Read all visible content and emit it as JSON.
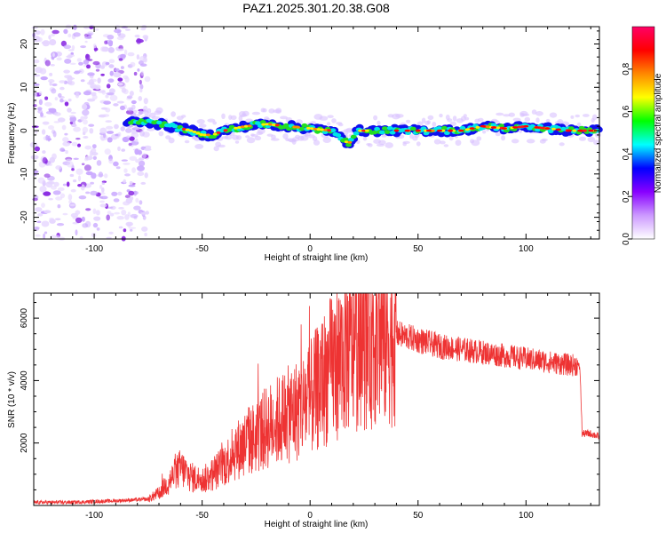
{
  "title": "PAZ1.2025.301.20.38.G08",
  "chart_data": [
    {
      "type": "heatmap",
      "name": "spectrogram",
      "xlabel": "Height of straight line (km)",
      "ylabel": "Frequency (Hz)",
      "xlim": [
        -128,
        134
      ],
      "ylim": [
        -25,
        24
      ],
      "xticks": [
        -100,
        -50,
        0,
        50,
        100
      ],
      "yticks": [
        -20,
        -10,
        0,
        10,
        20
      ],
      "noise_region_x": [
        -128,
        -75
      ],
      "track": {
        "x": [
          -85,
          -75,
          -65,
          -55,
          -50,
          -45,
          -40,
          -30,
          -20,
          -10,
          0,
          10,
          15,
          18,
          22,
          30,
          40,
          50,
          60,
          70,
          80,
          90,
          100,
          110,
          120,
          134
        ],
        "y": [
          2,
          2,
          1,
          0,
          -1,
          -1,
          0,
          1,
          1.5,
          1,
          0.5,
          0,
          -2,
          -3,
          0,
          0,
          0,
          0,
          0,
          0,
          1,
          0.5,
          1,
          0.5,
          0,
          0
        ]
      },
      "colorbar": {
        "label": "Normalized spectral amplitude",
        "range": [
          0.0,
          1.0
        ],
        "ticks": [
          "0.0",
          "0.2",
          "0.4",
          "0.6",
          "0.8"
        ],
        "colors": [
          "#ffffff",
          "#cc99ff",
          "#8800ff",
          "#0000ff",
          "#00ffff",
          "#00ff00",
          "#ffff00",
          "#ff8800",
          "#ff0000",
          "#ff0066"
        ]
      }
    },
    {
      "type": "line",
      "name": "snr",
      "xlabel": "Height of straight line (km)",
      "ylabel": "SNR (10 * v/v)",
      "xlim": [
        -128,
        134
      ],
      "ylim": [
        0,
        6800
      ],
      "xticks": [
        -100,
        -50,
        0,
        50,
        100
      ],
      "yticks": [
        2000,
        4000,
        6000
      ],
      "color": "#ee3333",
      "series": [
        {
          "name": "SNR",
          "x": [
            -128,
            -110,
            -90,
            -75,
            -70,
            -65,
            -60,
            -55,
            -50,
            -45,
            -40,
            -35,
            -30,
            -25,
            -20,
            -15,
            -10,
            -5,
            0,
            5,
            10,
            15,
            20,
            25,
            30,
            35,
            40,
            45,
            50,
            55,
            60,
            70,
            80,
            90,
            100,
            110,
            120,
            124,
            125,
            126,
            130,
            134
          ],
          "y": [
            100,
            100,
            150,
            200,
            400,
            800,
            1200,
            900,
            800,
            1000,
            1300,
            1700,
            2000,
            2200,
            2500,
            2700,
            2900,
            3100,
            3400,
            3900,
            4400,
            4800,
            5200,
            5300,
            5400,
            5500,
            5500,
            5400,
            5300,
            5200,
            5100,
            5000,
            4900,
            4800,
            4700,
            4600,
            4500,
            4500,
            4400,
            2300,
            2300,
            2200
          ]
        }
      ]
    }
  ]
}
